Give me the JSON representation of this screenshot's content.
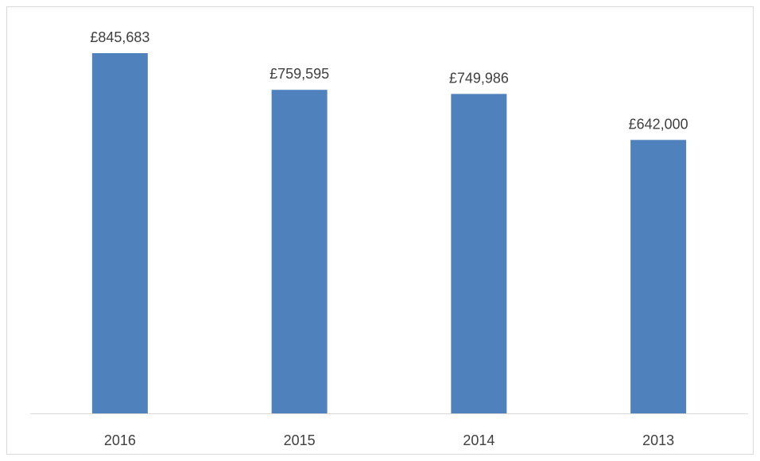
{
  "chart_data": {
    "type": "bar",
    "categories": [
      "2016",
      "2015",
      "2014",
      "2013"
    ],
    "values": [
      845683,
      759595,
      749986,
      642000
    ],
    "data_labels": [
      "£845,683",
      "£759,595",
      "£749,986",
      "£642,000"
    ],
    "ylim": [
      0,
      845683
    ],
    "grid": false,
    "legend": "none",
    "bar_color": "#4f81bd",
    "axis_color": "#d9d9d9",
    "text_color": "#404040"
  }
}
